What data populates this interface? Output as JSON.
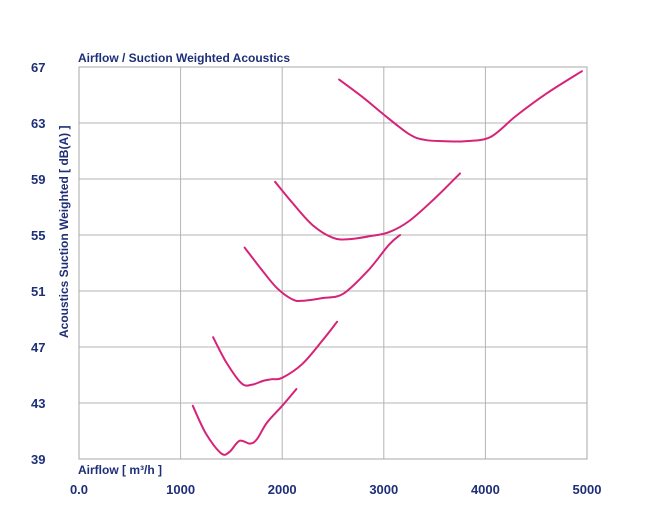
{
  "chart_data": {
    "type": "line",
    "title": "Airflow / Suction Weighted Acoustics",
    "xlabel": "Airflow [ m³/h ]",
    "ylabel": "Acoustics Suction Weighted [ dB(A) ]",
    "xlim": [
      0,
      5000
    ],
    "ylim": [
      39,
      67
    ],
    "x_ticks": [
      0,
      1000,
      2000,
      3000,
      4000,
      5000
    ],
    "x_tick_labels": [
      "0.0",
      "1000",
      "2000",
      "3000",
      "4000",
      "5000"
    ],
    "y_ticks": [
      39,
      43,
      47,
      51,
      55,
      59,
      63,
      67
    ],
    "y_tick_labels": [
      "39",
      "43",
      "47",
      "51",
      "55",
      "59",
      "63",
      "67"
    ],
    "grid": true,
    "legend": "none",
    "line_color": "#d6237a",
    "series": [
      {
        "x": [
          1120,
          1250,
          1400,
          1480,
          1580,
          1680,
          1750,
          1850,
          2000,
          2140
        ],
        "y": [
          42.8,
          40.8,
          39.4,
          39.5,
          40.3,
          40.1,
          40.4,
          41.6,
          42.8,
          44.0
        ]
      },
      {
        "x": [
          1320,
          1450,
          1600,
          1700,
          1820,
          1900,
          2000,
          2200,
          2400,
          2540
        ],
        "y": [
          47.7,
          45.9,
          44.4,
          44.3,
          44.6,
          44.7,
          44.8,
          45.8,
          47.5,
          48.8
        ]
      },
      {
        "x": [
          1630,
          1800,
          1950,
          2100,
          2200,
          2400,
          2600,
          2850,
          3050,
          3160
        ],
        "y": [
          54.1,
          52.5,
          51.2,
          50.4,
          50.3,
          50.5,
          50.8,
          52.5,
          54.3,
          55.0
        ]
      },
      {
        "x": [
          1930,
          2100,
          2300,
          2500,
          2650,
          2850,
          3050,
          3250,
          3500,
          3750
        ],
        "y": [
          58.8,
          57.3,
          55.7,
          54.8,
          54.7,
          54.9,
          55.2,
          56.0,
          57.6,
          59.4
        ]
      },
      {
        "x": [
          2560,
          2800,
          3000,
          3250,
          3400,
          3600,
          3800,
          4050,
          4300,
          4600,
          4950
        ],
        "y": [
          66.1,
          64.8,
          63.6,
          62.2,
          61.8,
          61.7,
          61.7,
          62.0,
          63.5,
          65.1,
          66.7
        ]
      }
    ]
  }
}
